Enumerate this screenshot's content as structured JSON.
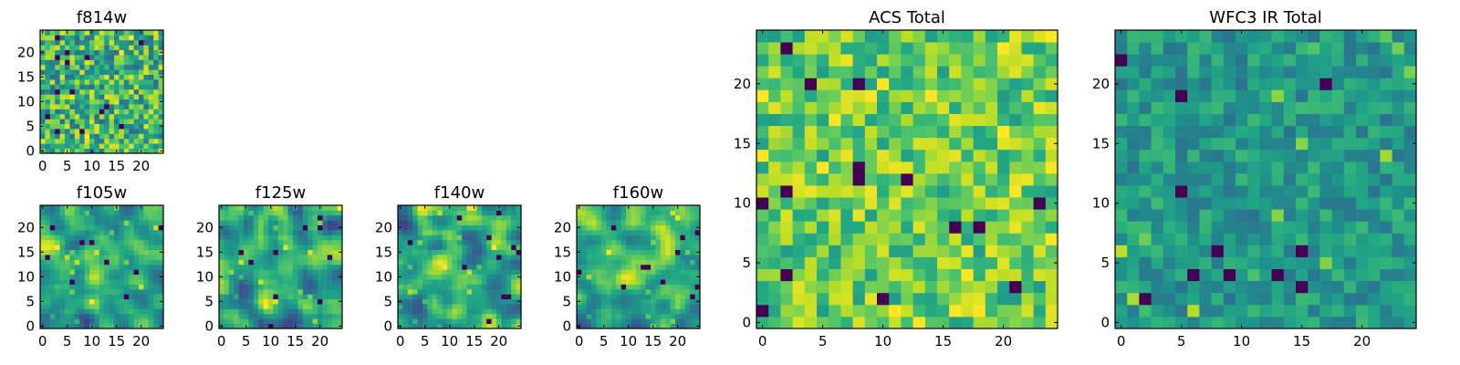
{
  "figure": {
    "colormap": "viridis",
    "grid_size": 25
  },
  "chart_data": [
    {
      "id": "f814w",
      "type": "heatmap",
      "title": "f814w",
      "xlim": [
        0,
        24
      ],
      "ylim": [
        0,
        24
      ],
      "xticks": [
        "0",
        "5",
        "10",
        "15",
        "20"
      ],
      "yticks": [
        "0",
        "5",
        "10",
        "15",
        "20"
      ],
      "texture": "fine",
      "seed": 11
    },
    {
      "id": "f105w",
      "type": "heatmap",
      "title": "f105w",
      "xlim": [
        0,
        24
      ],
      "ylim": [
        0,
        24
      ],
      "xticks": [
        "0",
        "5",
        "10",
        "15",
        "20"
      ],
      "yticks": [
        "0",
        "5",
        "10",
        "15",
        "20"
      ],
      "texture": "smooth",
      "seed": 23
    },
    {
      "id": "f125w",
      "type": "heatmap",
      "title": "f125w",
      "xlim": [
        0,
        24
      ],
      "ylim": [
        0,
        24
      ],
      "xticks": [
        "0",
        "5",
        "10",
        "15",
        "20"
      ],
      "yticks": [
        "0",
        "5",
        "10",
        "15",
        "20"
      ],
      "texture": "smooth",
      "seed": 37
    },
    {
      "id": "f140w",
      "type": "heatmap",
      "title": "f140w",
      "xlim": [
        0,
        24
      ],
      "ylim": [
        0,
        24
      ],
      "xticks": [
        "0",
        "5",
        "10",
        "15",
        "20"
      ],
      "yticks": [
        "0",
        "5",
        "10",
        "15",
        "20"
      ],
      "texture": "smooth",
      "seed": 41
    },
    {
      "id": "f160w",
      "type": "heatmap",
      "title": "f160w",
      "xlim": [
        0,
        24
      ],
      "ylim": [
        0,
        24
      ],
      "xticks": [
        "0",
        "5",
        "10",
        "15",
        "20"
      ],
      "yticks": [
        "0",
        "5",
        "10",
        "15",
        "20"
      ],
      "texture": "smooth",
      "seed": 53
    },
    {
      "id": "acs",
      "type": "heatmap",
      "title": "ACS Total",
      "xlim": [
        0,
        24
      ],
      "ylim": [
        0,
        24
      ],
      "xticks": [
        "0",
        "5",
        "10",
        "15",
        "20"
      ],
      "yticks": [
        "0",
        "5",
        "10",
        "15",
        "20"
      ],
      "texture": "bright",
      "seed": 67
    },
    {
      "id": "wfc3",
      "type": "heatmap",
      "title": "WFC3 IR Total",
      "xlim": [
        0,
        24
      ],
      "ylim": [
        0,
        24
      ],
      "xticks": [
        "0",
        "5",
        "10",
        "15",
        "20"
      ],
      "yticks": [
        "0",
        "5",
        "10",
        "15",
        "20"
      ],
      "texture": "teal",
      "seed": 79
    }
  ]
}
